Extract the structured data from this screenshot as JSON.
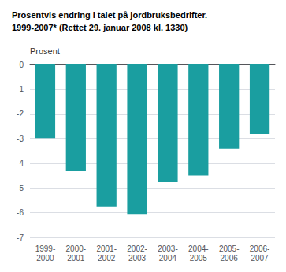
{
  "chart_data": {
    "type": "bar",
    "title": "Prosentvis endring i talet på jordbruksbedrifter.\n1999-2007* (Rettet 29. januar 2008 kl. 1330)",
    "y_label": "Prosent",
    "categories": [
      "1999-\n2000",
      "2000-\n2001",
      "2001-\n2002",
      "2002-\n2003",
      "2003-\n2004",
      "2004-\n2005",
      "2005-\n2006",
      "2006-\n2007"
    ],
    "values": [
      -3.0,
      -4.3,
      -5.75,
      -6.05,
      -4.75,
      -4.5,
      -3.4,
      -2.8
    ],
    "color": "#1a9ea0",
    "ylim": [
      -7,
      0
    ],
    "yticks": [
      0,
      -1,
      -2,
      -3,
      -4,
      -5,
      -6,
      -7
    ],
    "grid": true
  }
}
